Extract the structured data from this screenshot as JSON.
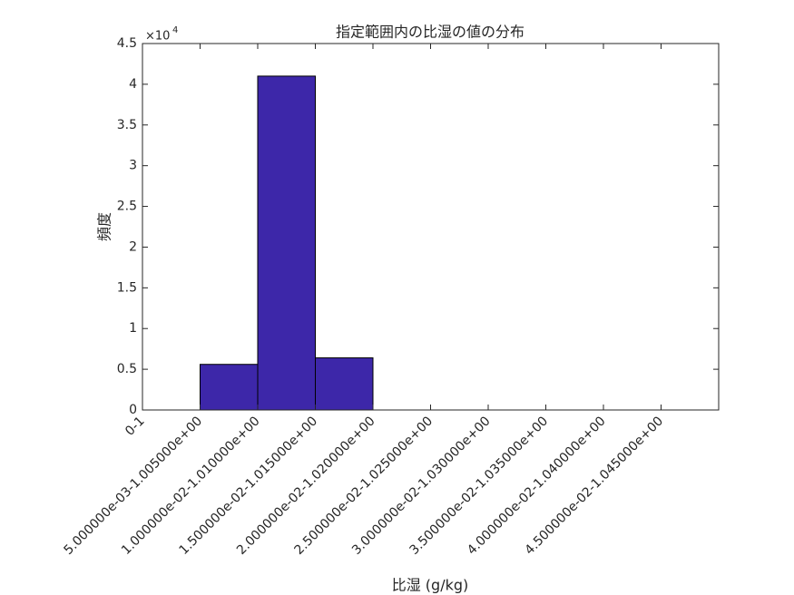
{
  "chart_data": {
    "type": "bar",
    "title": "指定範囲内の比湿の値の分布",
    "x_label": "比湿 (g/kg)",
    "y_label": "頻度",
    "y_exponent": {
      "base": "×10",
      "power": "4"
    },
    "categories": [
      "0-1",
      "5.000000e-03-1.005000e+00",
      "1.000000e-02-1.010000e+00",
      "1.500000e-02-1.015000e+00",
      "2.000000e-02-1.020000e+00",
      "2.500000e-02-1.025000e+00",
      "3.000000e-02-1.030000e+00",
      "3.500000e-02-1.035000e+00",
      "4.000000e-02-1.040000e+00",
      "4.500000e-02-1.045000e+00"
    ],
    "values": [
      0,
      5600,
      41000,
      6400,
      0,
      0,
      0,
      0,
      0,
      0
    ],
    "color": "#3d27a9",
    "edge_color": "#000000",
    "ylim": [
      0,
      45000
    ],
    "yticks": [
      0,
      {
        "value": 5000,
        "label": "0.5"
      },
      {
        "value": 10000,
        "label": "1"
      },
      {
        "value": 15000,
        "label": "1.5"
      },
      {
        "value": 20000,
        "label": "2"
      },
      {
        "value": 25000,
        "label": "2.5"
      },
      {
        "value": 30000,
        "label": "3"
      },
      {
        "value": 35000,
        "label": "3.5"
      },
      {
        "value": 40000,
        "label": "4"
      },
      {
        "value": 45000,
        "label": "4.5"
      }
    ],
    "grid": false
  }
}
